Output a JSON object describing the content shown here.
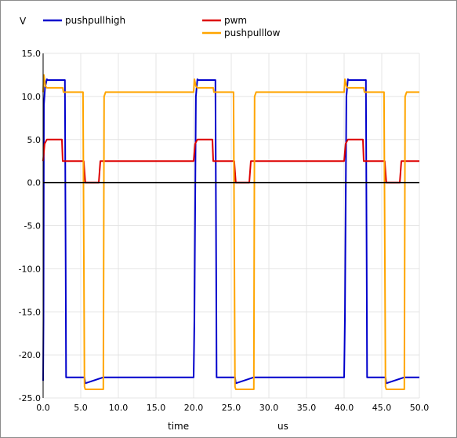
{
  "chart_data": {
    "type": "line",
    "ylabel": "V",
    "xlabel": "time",
    "xunit": "us",
    "xlim": [
      0,
      50
    ],
    "ylim": [
      -25,
      15
    ],
    "xticks": [
      "0.0",
      "5.0",
      "10.0",
      "15.0",
      "20.0",
      "25.0",
      "30.0",
      "35.0",
      "40.0",
      "45.0",
      "50.0"
    ],
    "yticks": [
      "15.0",
      "10.0",
      "5.0",
      "0.0",
      "-5.0",
      "-10.0",
      "-15.0",
      "-20.0",
      "-25.0"
    ],
    "grid": true,
    "legend_position": "top",
    "series": [
      {
        "name": "pushpullhigh",
        "color": "#0000cc",
        "x": [
          0,
          0.05,
          0.1,
          0.25,
          0.5,
          0.6,
          2.9,
          3.0,
          3.05,
          5.5,
          5.6,
          8.0,
          20.0,
          20.1,
          20.3,
          20.5,
          20.6,
          22.9,
          23.0,
          23.05,
          25.5,
          25.6,
          28.0,
          40.0,
          40.1,
          40.3,
          40.5,
          40.6,
          42.9,
          43.0,
          43.05,
          45.5,
          45.6,
          48.0,
          50.0
        ],
        "y": [
          -23,
          -16,
          9,
          11,
          12,
          11.9,
          11.9,
          -10,
          -22.6,
          -22.6,
          -23.3,
          -22.6,
          -22.6,
          -16,
          10,
          12,
          11.9,
          11.9,
          -10,
          -22.6,
          -22.6,
          -23.3,
          -22.6,
          -22.6,
          -16,
          10,
          12,
          11.9,
          11.9,
          -10,
          -22.6,
          -22.6,
          -23.3,
          -22.6,
          -22.6
        ]
      },
      {
        "name": "pwm",
        "color": "#dd0000",
        "x": [
          0,
          0.2,
          0.5,
          2.5,
          2.6,
          5.4,
          5.6,
          7.4,
          7.6,
          20.0,
          20.2,
          20.5,
          22.5,
          22.6,
          25.4,
          25.6,
          27.4,
          27.6,
          40.0,
          40.2,
          40.5,
          42.5,
          42.6,
          45.4,
          45.6,
          47.4,
          47.6,
          50.0
        ],
        "y": [
          2.5,
          4.5,
          5.0,
          5.0,
          2.5,
          2.5,
          0,
          0,
          2.5,
          2.5,
          4.5,
          5.0,
          5.0,
          2.5,
          2.5,
          0,
          0,
          2.5,
          2.5,
          4.5,
          5.0,
          5.0,
          2.5,
          2.5,
          0,
          0,
          2.5,
          2.5
        ]
      },
      {
        "name": "pushpulllow",
        "color": "#ffa500",
        "x": [
          0,
          0.1,
          0.3,
          0.5,
          2.6,
          2.7,
          5.3,
          5.5,
          5.6,
          8.0,
          8.1,
          8.3,
          20.0,
          20.1,
          20.3,
          20.5,
          22.6,
          22.7,
          25.3,
          25.5,
          25.6,
          28.0,
          28.1,
          28.3,
          40.0,
          40.1,
          40.3,
          40.5,
          42.6,
          42.7,
          45.3,
          45.5,
          45.6,
          48.0,
          48.1,
          48.3,
          50.0
        ],
        "y": [
          10.5,
          12.5,
          11.2,
          11.0,
          11.0,
          10.5,
          10.5,
          -23.7,
          -24.0,
          -24.0,
          10.0,
          10.5,
          10.5,
          12.0,
          11.2,
          11.0,
          11.0,
          10.5,
          10.5,
          -23.7,
          -24.0,
          -24.0,
          10.0,
          10.5,
          10.5,
          12.0,
          11.2,
          11.0,
          11.0,
          10.5,
          10.5,
          -23.7,
          -24.0,
          -24.0,
          10.0,
          10.5,
          10.5
        ]
      }
    ]
  }
}
